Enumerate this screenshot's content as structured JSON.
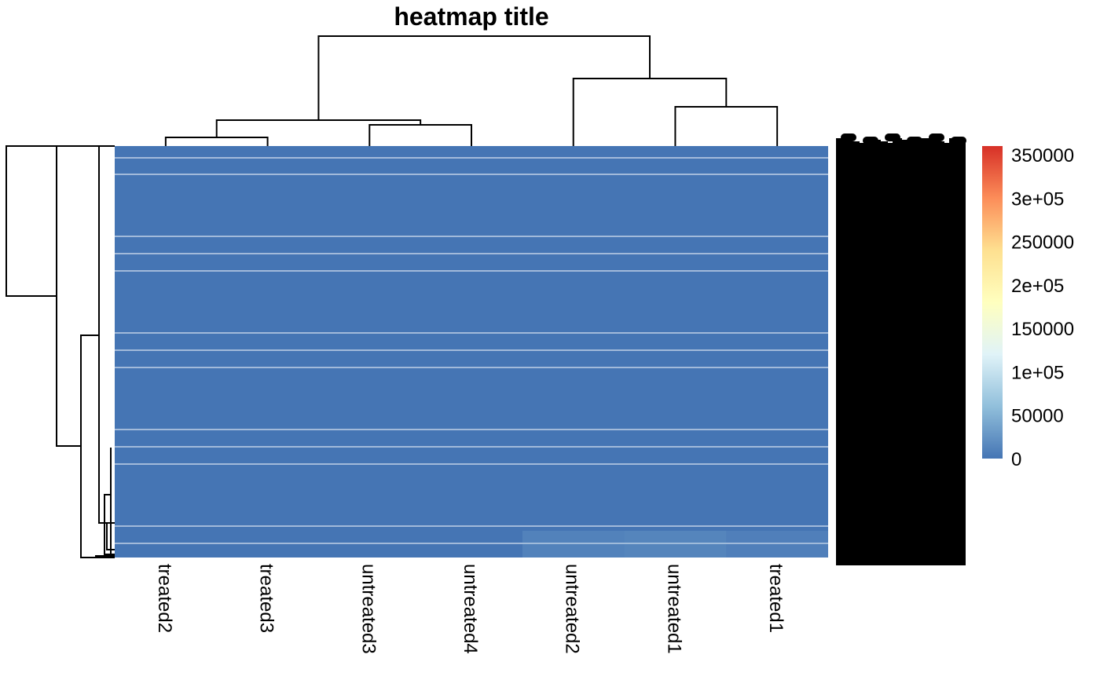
{
  "chart_data": {
    "type": "heatmap",
    "title": "heatmap title",
    "columns": [
      "treated2",
      "treated3",
      "untreated3",
      "untreated4",
      "untreated2",
      "untreated1",
      "treated1"
    ],
    "row_labels_legible": false,
    "cell_values_approx": "nearly all cells near 0",
    "legend": {
      "position": "right",
      "ticks": [
        "0",
        "50000",
        "1e+05",
        "150000",
        "2e+05",
        "250000",
        "3e+05",
        "350000"
      ],
      "tick_values": [
        0,
        50000,
        100000,
        150000,
        200000,
        250000,
        300000,
        350000
      ],
      "range": [
        0,
        360000
      ],
      "colors": [
        "#4575b4",
        "#91bfdb",
        "#e0f3f8",
        "#ffffbf",
        "#fee090",
        "#fc8d59",
        "#d73027"
      ]
    },
    "row_dendrogram": true,
    "column_dendrogram": true
  }
}
